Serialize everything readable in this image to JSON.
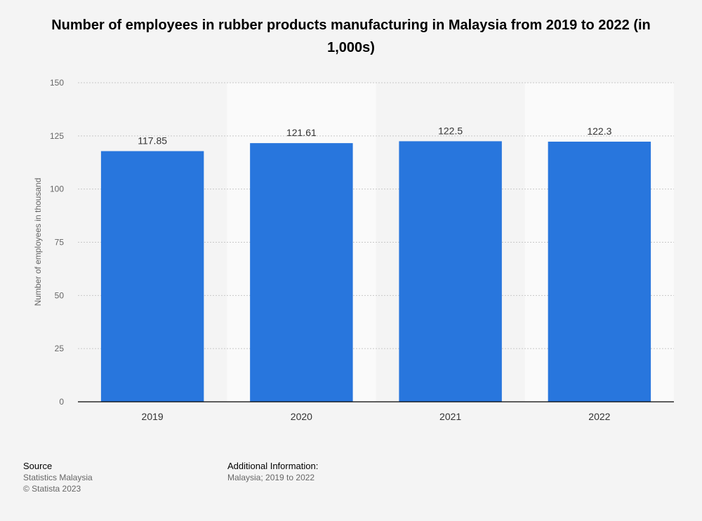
{
  "title": "Number of employees in rubber products manufacturing in Malaysia from 2019 to 2022 (in 1,000s)",
  "colors": {
    "bar": "#2876dd",
    "background": "#f4f4f4",
    "band": "#fafafa",
    "grid": "#c8c8c8",
    "axis": "#000000",
    "tick_text": "#666666",
    "label_text": "#333333"
  },
  "chart_data": {
    "type": "bar",
    "title": "Number of employees in rubber products manufacturing in Malaysia from 2019 to 2022 (in 1,000s)",
    "categories": [
      "2019",
      "2020",
      "2021",
      "2022"
    ],
    "values": [
      117.85,
      121.61,
      122.5,
      122.3
    ],
    "value_labels": [
      "117.85",
      "121.61",
      "122.5",
      "122.3"
    ],
    "xlabel": "",
    "ylabel": "Number of employees in thousand",
    "ylim": [
      0,
      150
    ],
    "yticks": [
      0,
      25,
      50,
      75,
      100,
      125,
      150
    ],
    "grid": true
  },
  "footer": {
    "source_heading": "Source",
    "source_lines": [
      "Statistics Malaysia",
      "© Statista 2023"
    ],
    "info_heading": "Additional Information:",
    "info_text": "Malaysia; 2019 to 2022"
  }
}
